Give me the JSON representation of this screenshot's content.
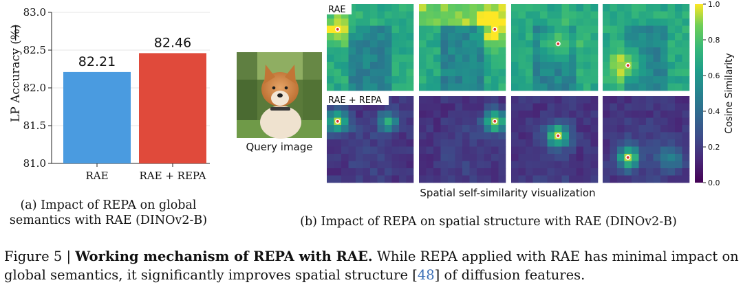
{
  "chart_data": [
    {
      "type": "bar",
      "categories": [
        "RAE",
        "RAE + REPA"
      ],
      "values": [
        82.21,
        82.46
      ],
      "data_labels": [
        "82.21",
        "82.46"
      ],
      "colors": [
        "#4a9be0",
        "#e04a3b"
      ],
      "ylabel": "LP Accuracy (%)",
      "ylabel_arrow": "⟶",
      "ylim": [
        81.0,
        83.0
      ],
      "yticks": [
        "81.0",
        "81.5",
        "82.0",
        "82.5",
        "83.0"
      ],
      "grid": true
    },
    {
      "type": "heatmap",
      "title": "Spatial self-similarity visualization",
      "row_labels": [
        "RAE",
        "RAE + REPA"
      ],
      "colorbar": {
        "label": "Cosine Similarity",
        "range": [
          0.0,
          1.0
        ],
        "ticks": [
          "0.0",
          "0.2",
          "0.4",
          "0.6",
          "0.8",
          "1.0"
        ],
        "colormap": "viridis"
      },
      "grid_size": 12,
      "query_image_label": "Query image"
    }
  ],
  "subcaptions": {
    "a_line1": "(a) Impact of REPA on global",
    "a_line2": "semantics with RAE (DINOv2-B)",
    "b": "(b) Impact of REPA on spatial structure with RAE (DINOv2-B)"
  },
  "figure_caption": {
    "prefix": "Figure 5 | ",
    "bold": "Working mechanism of REPA with RAE.",
    "text1": " While REPA applied with RAE has minimal impact on global semantics, it significantly improves spatial structure ",
    "ref_open": "[",
    "ref": "48",
    "ref_close": "]",
    "text2": " of diffusion features."
  }
}
